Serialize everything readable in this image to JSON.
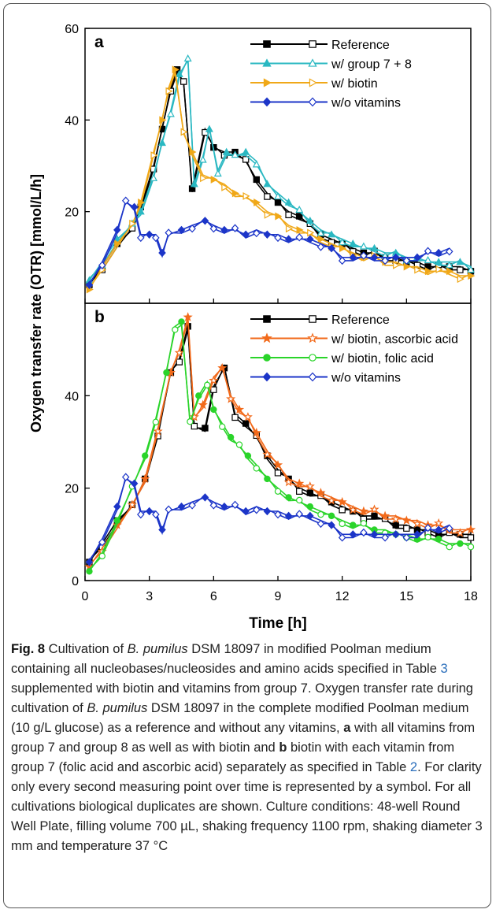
{
  "chart_data": [
    {
      "type": "line",
      "panel_label": "a",
      "xlim": [
        0,
        18
      ],
      "ylim": [
        0,
        60
      ],
      "y_ticks": [
        20,
        40,
        60
      ],
      "legend_placement": "top-right",
      "series": [
        {
          "name": "Reference",
          "color": "#000000",
          "marker": "square",
          "x": [
            0.2,
            0.8,
            1.5,
            2.2,
            2.6,
            3.2,
            3.6,
            4.0,
            4.3,
            4.6,
            5.0,
            5.6,
            6.0,
            6.5,
            7.0,
            7.5,
            8.0,
            8.5,
            9.0,
            9.5,
            10,
            10.5,
            11,
            11.5,
            12,
            12.5,
            13,
            13.5,
            14,
            14.5,
            15,
            15.5,
            16,
            16.5,
            17,
            17.5,
            18
          ],
          "y": [
            4,
            8,
            13,
            16,
            21,
            30,
            38,
            47,
            51,
            48,
            25,
            38,
            34,
            33,
            33,
            31,
            27,
            24,
            22,
            20,
            19,
            17,
            15,
            14,
            13,
            12,
            11,
            11,
            10,
            10,
            9,
            9,
            8,
            8,
            8,
            8,
            7
          ]
        },
        {
          "name": "w/ group 7 + 8",
          "color": "#2ab8c2",
          "marker": "triangle",
          "x": [
            0.2,
            0.8,
            1.5,
            2.2,
            2.6,
            3.2,
            3.6,
            4.0,
            4.4,
            4.8,
            5.1,
            5.5,
            5.8,
            6.2,
            6.6,
            7.0,
            7.5,
            8.0,
            8.5,
            9.0,
            9.5,
            10,
            10.5,
            11,
            11.5,
            12,
            12.5,
            13,
            13.5,
            14,
            14.5,
            15,
            15.5,
            16,
            16.5,
            17,
            17.5,
            18
          ],
          "y": [
            5,
            9,
            14,
            17,
            20,
            28,
            35,
            42,
            50,
            53,
            26,
            32,
            38,
            29,
            33,
            32,
            33,
            31,
            26,
            24,
            22,
            20,
            18,
            16,
            15,
            14,
            13,
            12,
            12,
            11,
            11,
            10,
            10,
            9,
            9,
            9,
            9,
            8
          ]
        },
        {
          "name": "w/ biotin",
          "color": "#f0a818",
          "marker": "triangle-right",
          "x": [
            0.2,
            0.8,
            1.5,
            2.2,
            2.6,
            3.2,
            3.6,
            3.9,
            4.2,
            4.6,
            5.0,
            5.5,
            6.0,
            6.5,
            7.0,
            7.5,
            8.0,
            8.5,
            9.0,
            9.5,
            10,
            10.5,
            11,
            11.5,
            12,
            12.5,
            13,
            13.5,
            14,
            14.5,
            15,
            15.5,
            16,
            16.5,
            17,
            17.5,
            18
          ],
          "y": [
            3,
            8,
            13,
            17,
            22,
            33,
            40,
            47,
            51,
            37,
            33,
            28,
            27,
            26,
            24,
            23,
            22,
            20,
            19,
            17,
            16,
            15,
            14,
            13,
            12,
            11,
            10,
            10,
            9,
            9,
            8,
            8,
            7,
            7,
            7,
            6,
            6
          ]
        },
        {
          "name": "w/o vitamins",
          "color": "#1c35c8",
          "marker": "diamond",
          "x": [
            0.2,
            0.8,
            1.5,
            1.9,
            2.3,
            2.6,
            3.0,
            3.3,
            3.6,
            3.9,
            4.5,
            5.0,
            5.6,
            6.0,
            6.5,
            7.0,
            7.5,
            8.0,
            8.5,
            9.0,
            9.5,
            10,
            10.5,
            11,
            11.5,
            12,
            12.5,
            13,
            13.5,
            14,
            14.5,
            15,
            15.5,
            16,
            16.5,
            17
          ],
          "y": [
            4,
            9,
            16,
            22,
            21,
            15,
            15,
            15,
            11,
            15,
            16,
            17,
            18,
            17,
            16,
            16,
            15,
            16,
            15,
            15,
            14,
            14,
            14,
            13,
            12,
            10,
            10,
            10,
            10,
            10,
            10,
            10,
            10,
            11,
            11,
            12
          ]
        }
      ]
    },
    {
      "type": "line",
      "panel_label": "b",
      "xlabel": "Time   [h]",
      "xlim": [
        0,
        18
      ],
      "ylim": [
        0,
        60
      ],
      "x_ticks": [
        0,
        3,
        6,
        9,
        12,
        15,
        18
      ],
      "y_ticks": [
        0,
        20,
        40
      ],
      "legend_placement": "top-right",
      "series": [
        {
          "name": "Reference",
          "color": "#000000",
          "marker": "square",
          "x": [
            0.2,
            0.8,
            1.5,
            2.2,
            2.8,
            3.4,
            4.0,
            4.4,
            4.8,
            5.1,
            5.6,
            6.0,
            6.5,
            7.0,
            7.5,
            8.0,
            8.5,
            9.0,
            9.5,
            10,
            10.5,
            11,
            11.5,
            12,
            12.5,
            13,
            13.5,
            14,
            14.5,
            15,
            15.5,
            16,
            16.5,
            17,
            17.5,
            18
          ],
          "y": [
            4,
            8,
            13,
            16,
            22,
            32,
            45,
            48,
            55,
            33,
            33,
            42,
            46,
            36,
            34,
            31,
            27,
            24,
            22,
            20,
            19,
            18,
            17,
            16,
            15,
            14,
            14,
            13,
            12,
            12,
            11,
            11,
            10,
            10,
            10,
            10
          ]
        },
        {
          "name": "w/ biotin, ascorbic acid",
          "color": "#f26a1b",
          "marker": "star",
          "x": [
            0.2,
            0.8,
            1.5,
            2.2,
            2.8,
            3.4,
            4.0,
            4.4,
            4.8,
            5.1,
            5.5,
            6.0,
            6.4,
            6.8,
            7.2,
            7.6,
            8.0,
            8.5,
            9.0,
            9.5,
            10,
            10.5,
            11,
            11.5,
            12,
            12.5,
            13,
            13.5,
            14,
            14.5,
            15,
            15.5,
            16,
            16.5,
            17,
            17.5,
            18
          ],
          "y": [
            3,
            7,
            12,
            16,
            22,
            33,
            45,
            50,
            57,
            35,
            38,
            44,
            46,
            40,
            37,
            35,
            32,
            28,
            25,
            22,
            21,
            20,
            19,
            18,
            17,
            16,
            15,
            15,
            14,
            14,
            13,
            13,
            12,
            12,
            11,
            11,
            11
          ]
        },
        {
          "name": "w/ biotin, folic acid",
          "color": "#2ad42a",
          "marker": "circle",
          "x": [
            0.2,
            0.8,
            1.5,
            2.2,
            2.8,
            3.3,
            3.8,
            4.2,
            4.5,
            4.9,
            5.3,
            5.7,
            6.0,
            6.4,
            6.8,
            7.2,
            7.6,
            8.0,
            8.5,
            9.0,
            9.5,
            10,
            10.5,
            11,
            11.5,
            12,
            12.5,
            13,
            13.5,
            14,
            14.5,
            15,
            15.5,
            16,
            16.5,
            17,
            17.5,
            18
          ],
          "y": [
            2,
            6,
            13,
            20,
            27,
            35,
            45,
            55,
            56,
            34,
            40,
            43,
            37,
            34,
            31,
            29,
            27,
            25,
            22,
            20,
            18,
            17,
            16,
            15,
            14,
            13,
            12,
            12,
            11,
            11,
            10,
            10,
            9,
            9,
            9,
            8,
            8,
            8
          ]
        },
        {
          "name": "w/o vitamins",
          "color": "#1c35c8",
          "marker": "diamond",
          "x": [
            0.2,
            0.8,
            1.5,
            1.9,
            2.3,
            2.6,
            3.0,
            3.3,
            3.6,
            3.9,
            4.5,
            5.0,
            5.6,
            6.0,
            6.5,
            7.0,
            7.5,
            8.0,
            8.5,
            9.0,
            9.5,
            10,
            10.5,
            11,
            11.5,
            12,
            12.5,
            13,
            13.5,
            14,
            14.5,
            15,
            15.5,
            16,
            16.5,
            17
          ],
          "y": [
            4,
            9,
            16,
            22,
            21,
            15,
            15,
            15,
            11,
            15,
            16,
            17,
            18,
            17,
            16,
            16,
            15,
            16,
            15,
            15,
            14,
            14,
            14,
            13,
            12,
            10,
            10,
            10,
            10,
            10,
            10,
            10,
            10,
            11,
            11,
            12
          ]
        }
      ]
    }
  ],
  "shared_ylabel": "Oxygen transfer rate (OTR)   [mmol/L/h]",
  "caption": {
    "label": "Fig. 8",
    "t1": "  Cultivation of ",
    "i1": "B. pumilus",
    "t2": " DSM 18097 in modified Poolman medium containing all nucleobases/nucleosides and amino acids specified in Table ",
    "ref1": "3",
    "t3": " supplemented with biotin and vitamins from group 7. Oxygen transfer rate during cultivation of ",
    "i2": "B. pumilus",
    "t4": " DSM 18097 in the complete modified Poolman medium (10 g/L glucose) as a reference and without any vitamins, ",
    "b1": "a",
    "t5": " with all vitamins from group 7 and group 8 as well as with biotin and ",
    "b2": "b",
    "t6": " biotin with each vitamin from group 7 (folic acid and ascorbic acid) separately as specified in Table ",
    "ref2": "2",
    "t7": ". For clarity only every second measuring point over time is represented by a symbol. For all cultivations biological duplicates are shown. Culture conditions: 48-well Round Well Plate, filling volume 700 µL, shaking frequency 1100 rpm, shaking diameter 3 mm and temperature 37 °C"
  }
}
